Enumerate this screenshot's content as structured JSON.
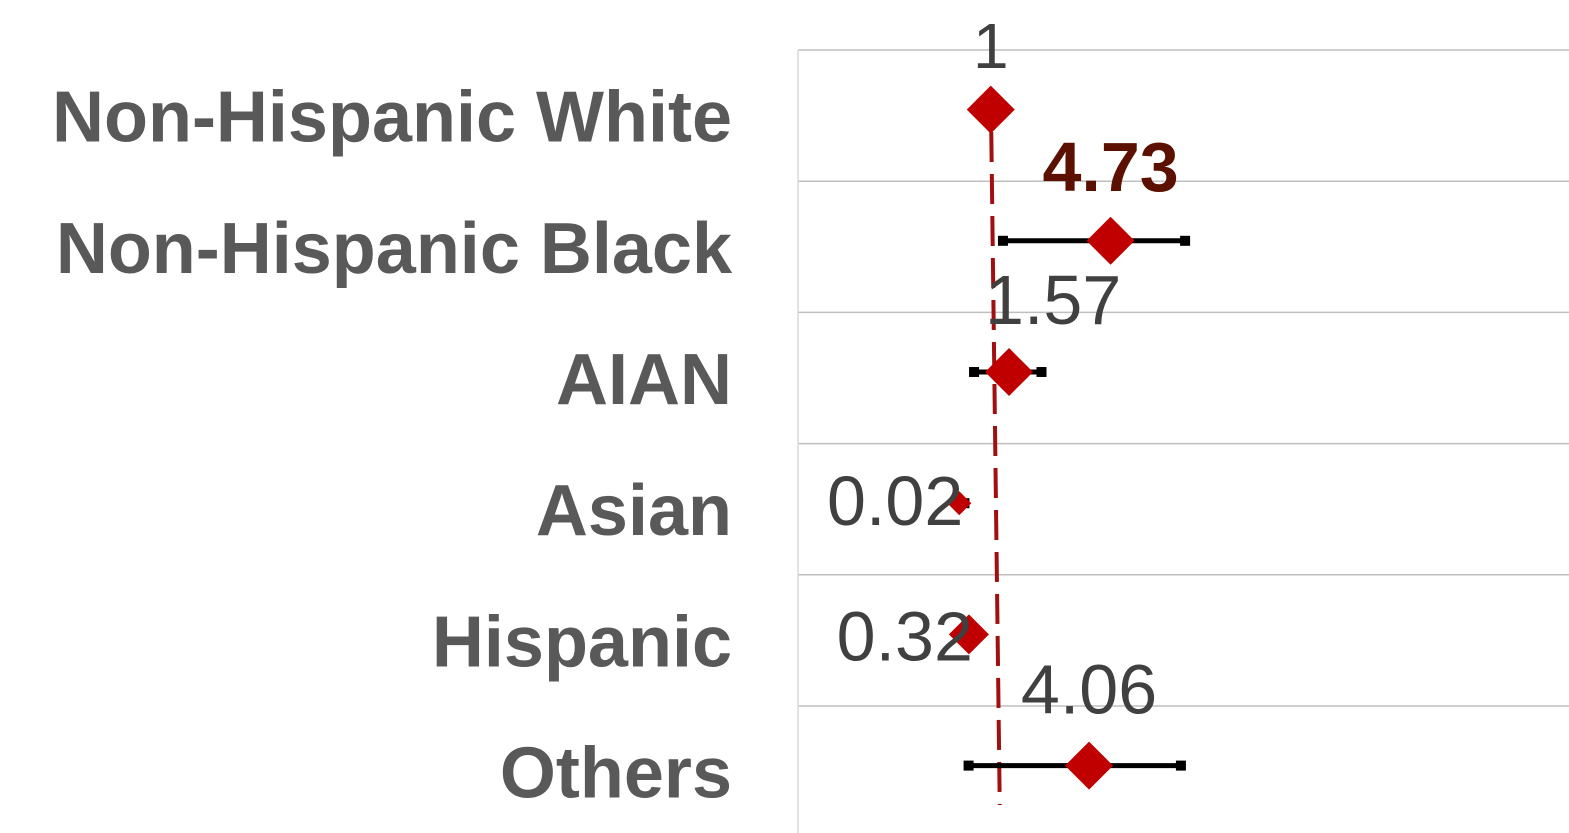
{
  "chart_data": {
    "type": "forest",
    "categories": [
      "Non-Hispanic White",
      "Non-Hispanic Black",
      "AIAN",
      "Asian",
      "Hispanic",
      "Others"
    ],
    "series": [
      {
        "values": [
          1,
          4.73,
          1.57,
          0.02,
          0.32,
          4.06
        ],
        "ci_lower": [
          1,
          1.38,
          0.48,
          0.0,
          0.0,
          0.31
        ],
        "ci_upper": [
          1,
          7.05,
          2.58,
          0.18,
          0.32,
          6.92
        ],
        "labels": [
          "",
          "4.73",
          "1.57",
          "0.02",
          "0.32",
          "4.06"
        ],
        "highlight": [
          false,
          true,
          false,
          false,
          false,
          false
        ]
      }
    ],
    "reference_line": {
      "value": 1,
      "label": "1",
      "style": "dashed"
    },
    "xlim": [
      -5,
      19
    ],
    "grid": "horizontal",
    "colors": {
      "marker": "#c00000",
      "ci": "#000000",
      "reference": "#a01010",
      "grid": "#bfbfbf",
      "category_text": "#595959",
      "value_text": "#404040",
      "highlight_text": "#5c1100"
    }
  }
}
